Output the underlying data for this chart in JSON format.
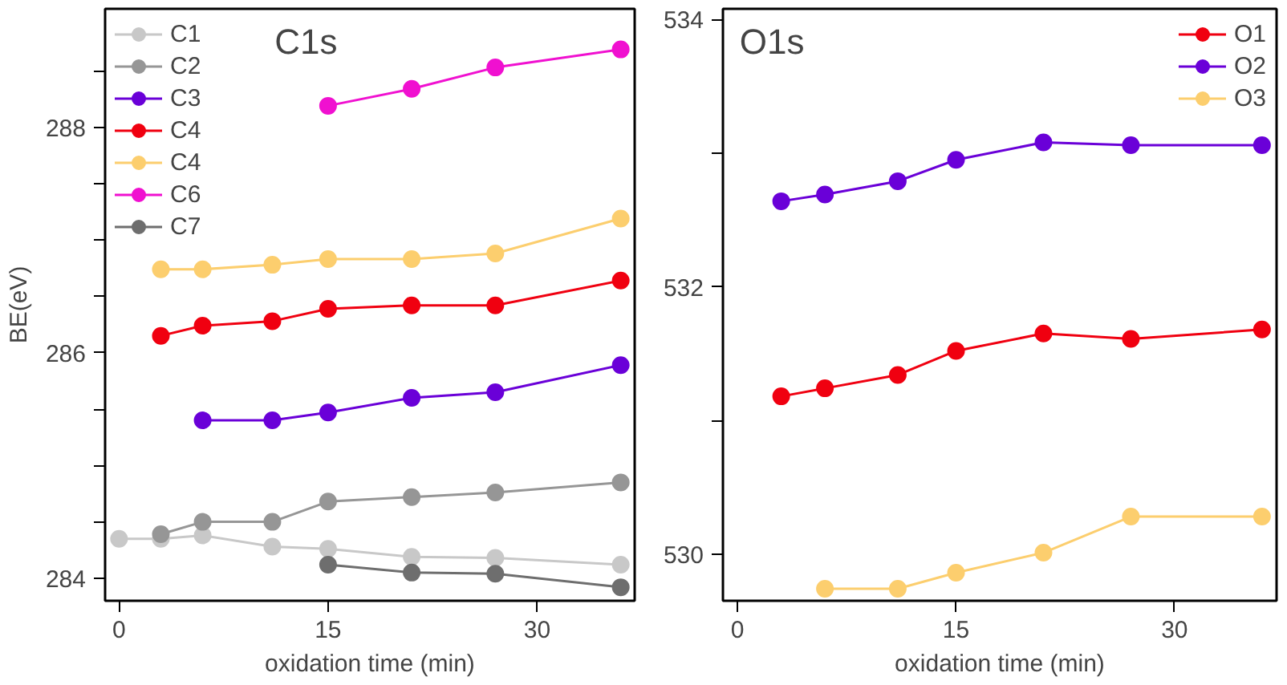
{
  "chart_data": [
    {
      "type": "line",
      "title": "C1s",
      "xlabel": "oxidation time (min)",
      "ylabel": "BE(eV)",
      "xlim": [
        -1,
        37
      ],
      "ylim": [
        283.8,
        289.05
      ],
      "xticks": [
        0,
        15,
        30
      ],
      "yticks": [
        284,
        {
          "value": 284.5,
          "label": null
        },
        {
          "value": 285,
          "label": null
        },
        {
          "value": 285.5,
          "label": null
        },
        286,
        {
          "value": 286.5,
          "label": null
        },
        {
          "value": 287,
          "label": null
        },
        {
          "value": 287.5,
          "label": null
        },
        288,
        {
          "value": 288.5,
          "label": null
        }
      ],
      "grid": false,
      "legend": "top left",
      "marker": "circle",
      "line_style": "solid",
      "series": [
        {
          "name": "C1",
          "color": "#c8c8c8",
          "x": [
            0,
            3,
            6,
            11,
            15,
            21,
            27,
            36
          ],
          "values": [
            284.35,
            284.35,
            284.38,
            284.28,
            284.26,
            284.19,
            284.18,
            284.12
          ]
        },
        {
          "name": "C2",
          "color": "#969696",
          "x": [
            3,
            6,
            11,
            15,
            21,
            27,
            36
          ],
          "values": [
            284.39,
            284.5,
            284.5,
            284.68,
            284.72,
            284.76,
            284.85
          ]
        },
        {
          "name": "C3",
          "color": "#6a00d8",
          "x": [
            6,
            11,
            15,
            21,
            27,
            36
          ],
          "values": [
            285.4,
            285.4,
            285.47,
            285.6,
            285.65,
            285.89
          ]
        },
        {
          "name": "C4",
          "color": "#f00010",
          "x": [
            3,
            6,
            11,
            15,
            21,
            27,
            36
          ],
          "values": [
            286.15,
            286.24,
            286.28,
            286.39,
            286.42,
            286.42,
            286.64
          ]
        },
        {
          "name": "C4",
          "color": "#fcce6e",
          "x": [
            3,
            6,
            11,
            15,
            21,
            27,
            36
          ],
          "values": [
            286.74,
            286.74,
            286.78,
            286.83,
            286.83,
            286.88,
            287.19
          ]
        },
        {
          "name": "C6",
          "color": "#f010d0",
          "x": [
            15,
            21,
            27,
            36
          ],
          "values": [
            288.19,
            288.34,
            288.53,
            288.69
          ]
        },
        {
          "name": "C7",
          "color": "#6e6e6e",
          "x": [
            15,
            21,
            27,
            36
          ],
          "values": [
            284.12,
            284.05,
            284.04,
            283.92
          ]
        }
      ]
    },
    {
      "type": "line",
      "title": "O1s",
      "xlabel": "oxidation time (min)",
      "xlim": [
        -1,
        37
      ],
      "ylim": [
        529.65,
        534.08
      ],
      "xticks": [
        0,
        15,
        30
      ],
      "yticks": [
        530,
        {
          "value": 531,
          "label": null
        },
        532,
        {
          "value": 533,
          "label": null
        },
        534
      ],
      "grid": false,
      "legend": "top right",
      "marker": "circle",
      "line_style": "solid",
      "series": [
        {
          "name": "O1",
          "color": "#f00010",
          "x": [
            3,
            6,
            11,
            15,
            21,
            27,
            36
          ],
          "values": [
            531.18,
            531.24,
            531.34,
            531.52,
            531.65,
            531.61,
            531.68
          ]
        },
        {
          "name": "O2",
          "color": "#6a00d8",
          "x": [
            3,
            6,
            11,
            15,
            21,
            27,
            36
          ],
          "values": [
            532.64,
            532.69,
            532.79,
            532.95,
            533.08,
            533.06,
            533.06
          ]
        },
        {
          "name": "O3",
          "color": "#fcce6e",
          "x": [
            6,
            11,
            15,
            21,
            27,
            36
          ],
          "values": [
            529.74,
            529.74,
            529.86,
            530.01,
            530.28,
            530.28
          ]
        }
      ]
    }
  ]
}
